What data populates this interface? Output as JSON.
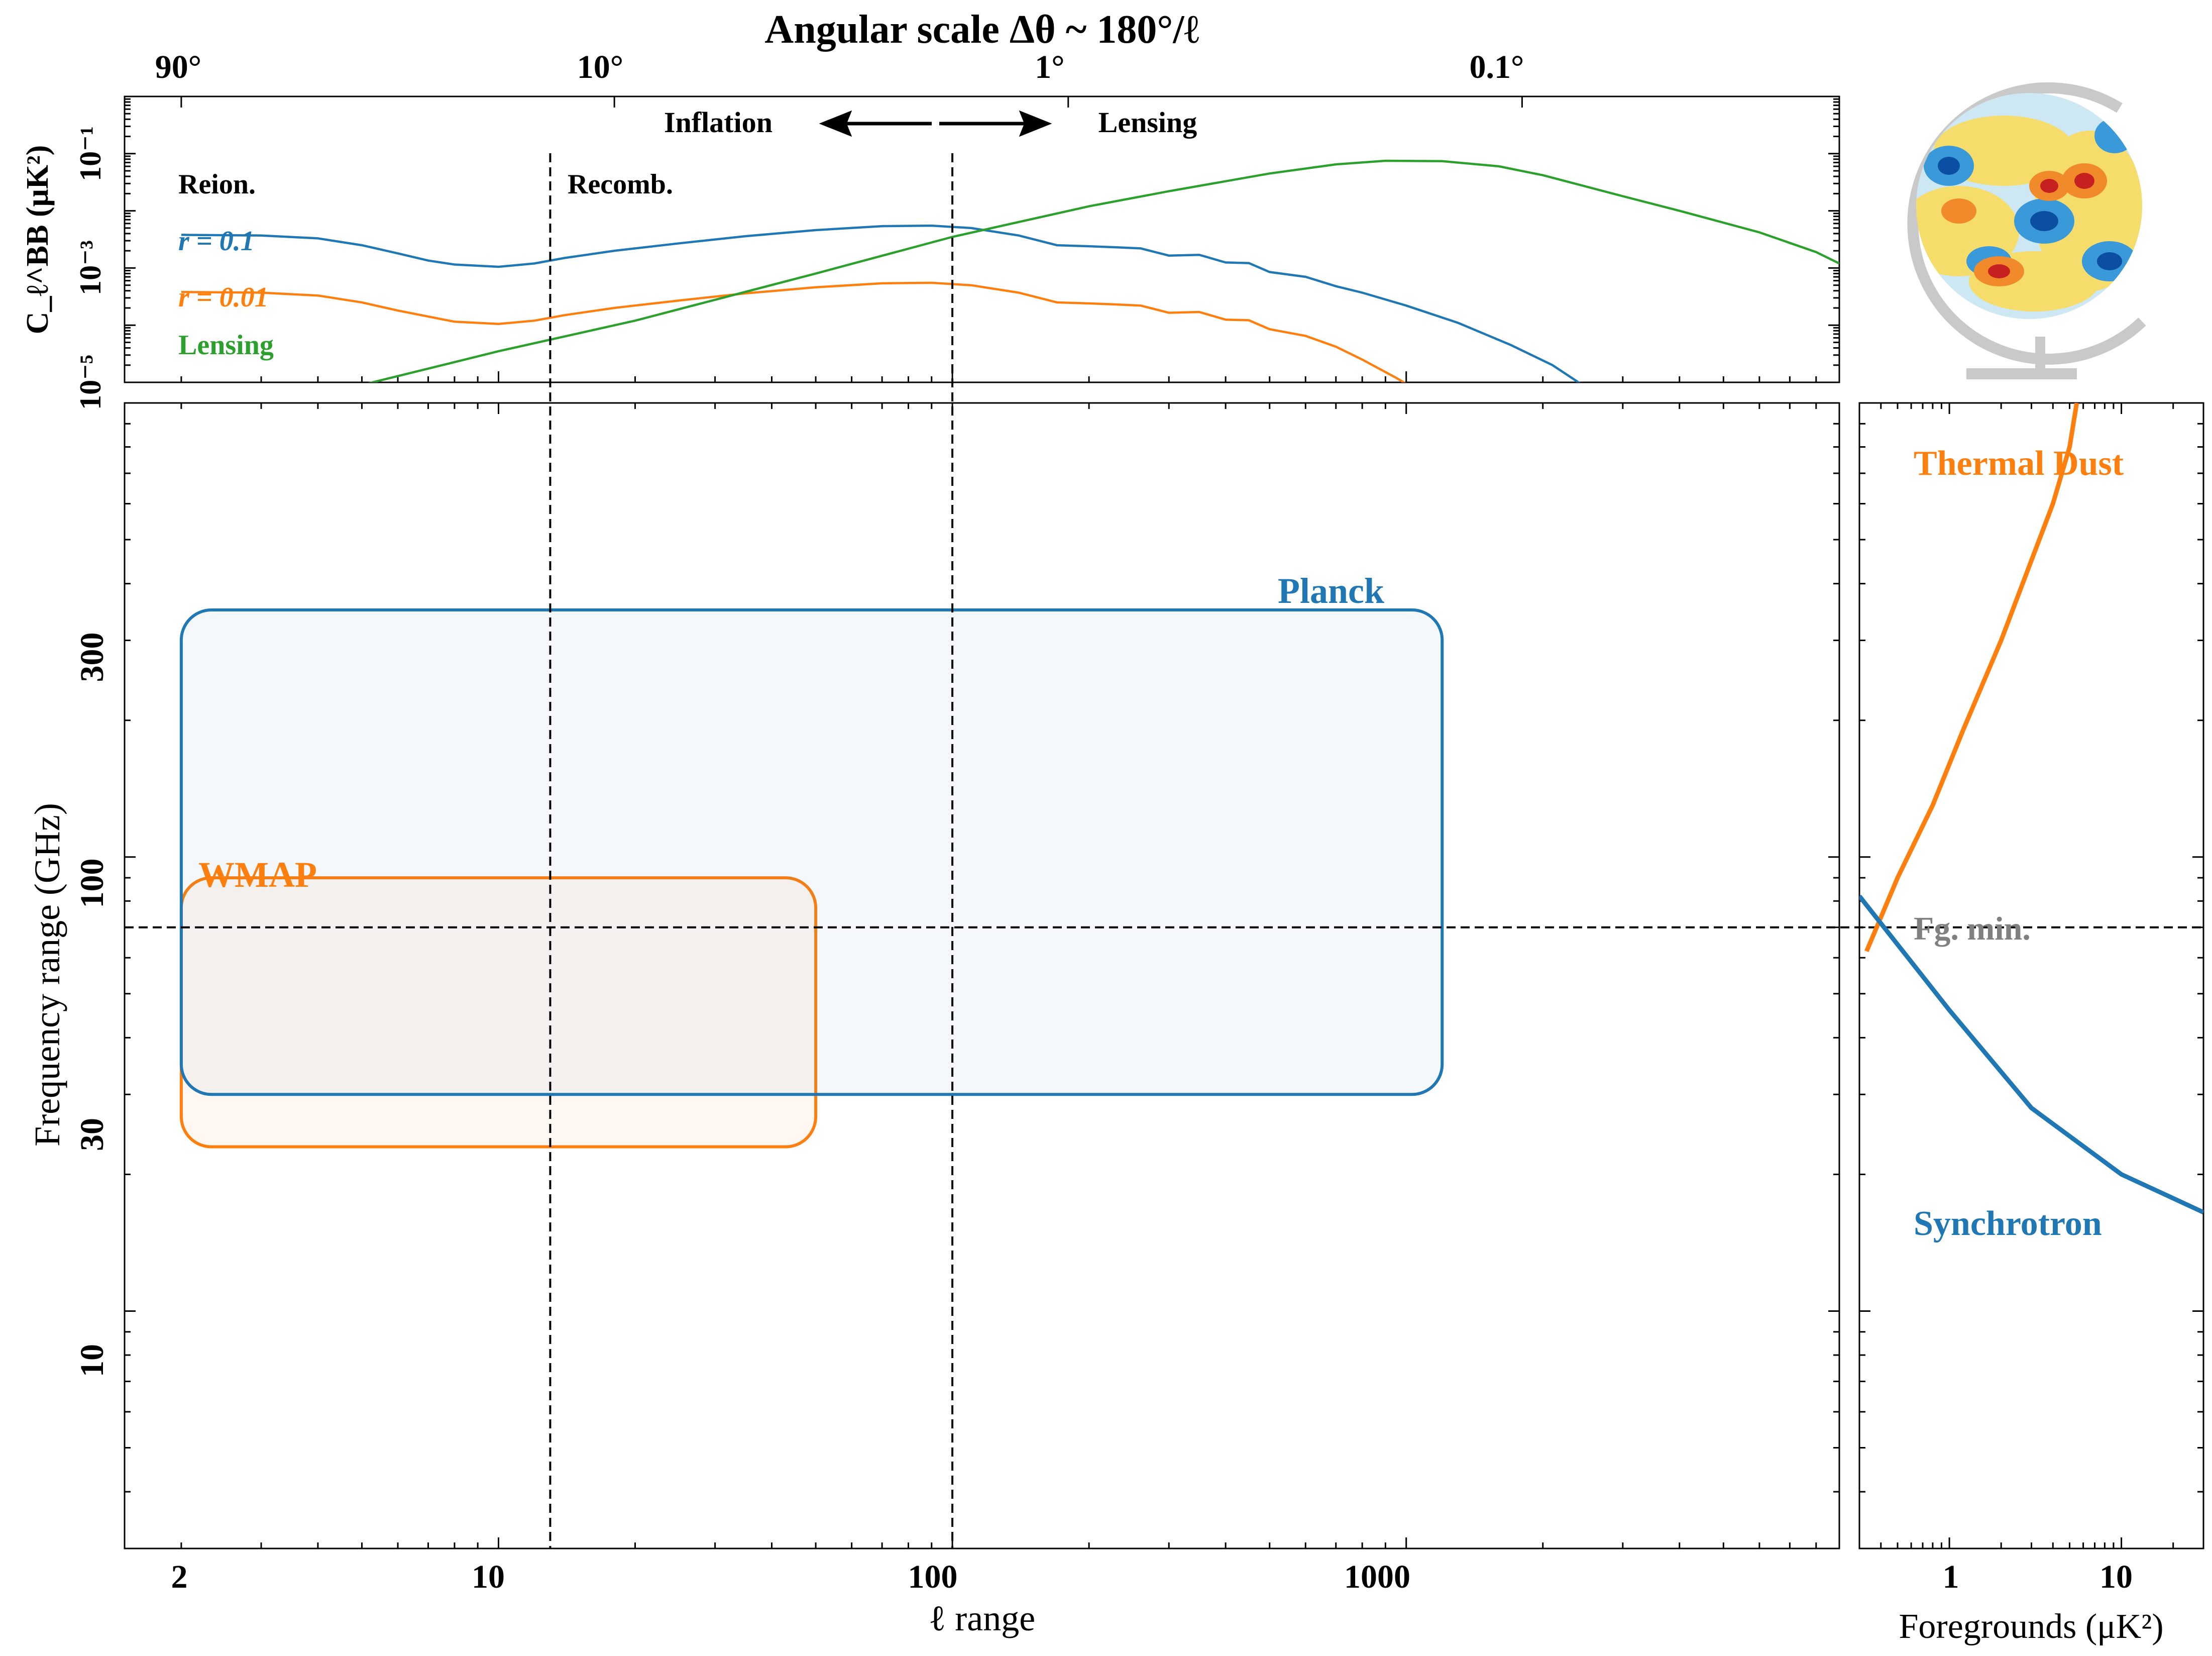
{
  "colors": {
    "blue": "#1f77b4",
    "orange": "#ff7f0e",
    "green": "#2ca02c",
    "gray": "#808080",
    "black": "#000000"
  },
  "top_axis": {
    "title": "Angular scale Δθ ~ 180°/ℓ",
    "ticks": [
      "90°",
      "10°",
      "1°",
      "0.1°"
    ],
    "tick_ell": [
      2,
      18,
      180,
      1800
    ]
  },
  "annotations": {
    "inflation": "Inflation",
    "lensing_arrow": "Lensing",
    "reion": "Reion.",
    "recomb": "Recomb.",
    "fg_min": "Fg. min."
  },
  "chart_data": [
    {
      "type": "line",
      "panel": "top-spectrum",
      "ylabel": "C_ℓ^BB (μK²)",
      "xscale": "log",
      "yscale": "log",
      "xlim": [
        1.5,
        9000
      ],
      "ylim": [
        1e-05,
        1
      ],
      "ytick_labels": [
        "10⁻⁵",
        "10⁻³",
        "10⁻¹"
      ],
      "vlines_ell": [
        13,
        100
      ],
      "series": [
        {
          "name": "r = 0.1",
          "color": "#1f77b4",
          "points": [
            [
              2,
              0.0038
            ],
            [
              3,
              0.0037
            ],
            [
              4,
              0.0033
            ],
            [
              5,
              0.0025
            ],
            [
              6,
              0.0018
            ],
            [
              7,
              0.00135
            ],
            [
              8,
              0.00115
            ],
            [
              10,
              0.00105
            ],
            [
              12,
              0.0012
            ],
            [
              14,
              0.0015
            ],
            [
              18,
              0.002
            ],
            [
              25,
              0.0027
            ],
            [
              35,
              0.0036
            ],
            [
              50,
              0.0046
            ],
            [
              70,
              0.0054
            ],
            [
              90,
              0.0055
            ],
            [
              110,
              0.005
            ],
            [
              140,
              0.0037
            ],
            [
              170,
              0.0025
            ],
            [
              200,
              0.0024
            ],
            [
              230,
              0.0023
            ],
            [
              260,
              0.0022
            ],
            [
              300,
              0.00165
            ],
            [
              350,
              0.0017
            ],
            [
              400,
              0.00125
            ],
            [
              450,
              0.00122
            ],
            [
              500,
              0.00085
            ],
            [
              600,
              0.0007
            ],
            [
              700,
              0.00048
            ],
            [
              800,
              0.00037
            ],
            [
              1000,
              0.00022
            ],
            [
              1300,
              0.00011
            ],
            [
              1700,
              4.5e-05
            ],
            [
              2100,
              2e-05
            ],
            [
              2500,
              8e-06
            ]
          ]
        },
        {
          "name": "r = 0.01",
          "color": "#ff7f0e",
          "points": [
            [
              2,
              0.00038
            ],
            [
              3,
              0.00037
            ],
            [
              4,
              0.00033
            ],
            [
              5,
              0.00025
            ],
            [
              6,
              0.00018
            ],
            [
              8,
              0.000115
            ],
            [
              10,
              0.000105
            ],
            [
              12,
              0.00012
            ],
            [
              14,
              0.00015
            ],
            [
              18,
              0.0002
            ],
            [
              25,
              0.00027
            ],
            [
              35,
              0.00036
            ],
            [
              50,
              0.00046
            ],
            [
              70,
              0.00054
            ],
            [
              90,
              0.00055
            ],
            [
              110,
              0.0005
            ],
            [
              140,
              0.00037
            ],
            [
              170,
              0.00025
            ],
            [
              200,
              0.00024
            ],
            [
              230,
              0.00023
            ],
            [
              260,
              0.00022
            ],
            [
              300,
              0.000165
            ],
            [
              350,
              0.00017
            ],
            [
              400,
              0.000125
            ],
            [
              450,
              0.000122
            ],
            [
              500,
              8.5e-05
            ],
            [
              600,
              6.5e-05
            ],
            [
              700,
              4.2e-05
            ],
            [
              800,
              2.5e-05
            ],
            [
              950,
              1.2e-05
            ],
            [
              1100,
              6e-06
            ]
          ]
        },
        {
          "name": "Lensing",
          "color": "#2ca02c",
          "points": [
            [
              5,
              9e-06
            ],
            [
              10,
              3.5e-05
            ],
            [
              20,
              0.00012
            ],
            [
              50,
              0.0008
            ],
            [
              100,
              0.0035
            ],
            [
              200,
              0.012
            ],
            [
              300,
              0.022
            ],
            [
              500,
              0.045
            ],
            [
              700,
              0.065
            ],
            [
              900,
              0.075
            ],
            [
              1200,
              0.074
            ],
            [
              1600,
              0.06
            ],
            [
              2000,
              0.042
            ],
            [
              3000,
              0.018
            ],
            [
              4000,
              0.01
            ],
            [
              6000,
              0.0042
            ],
            [
              8000,
              0.0019
            ],
            [
              9000,
              0.0012
            ]
          ]
        }
      ]
    },
    {
      "type": "area",
      "panel": "main",
      "xlabel": "ℓ range",
      "ylabel": "Frequency range (GHz)",
      "xscale": "log",
      "yscale": "log",
      "xlim": [
        1.5,
        9000
      ],
      "ylim": [
        3,
        1000
      ],
      "xtick_labels": [
        "2",
        "10",
        "100",
        "1000"
      ],
      "xticks": [
        2,
        10,
        100,
        1000
      ],
      "ytick_labels": [
        "10",
        "30",
        "100",
        "300"
      ],
      "yticks": [
        10,
        30,
        100,
        300
      ],
      "vlines_ell": [
        13,
        100
      ],
      "hline_ghz": 70,
      "series": [
        {
          "name": "Planck",
          "color": "#1f77b4",
          "ell_range": [
            2,
            1200
          ],
          "freq_range_ghz": [
            30,
            350
          ]
        },
        {
          "name": "WMAP",
          "color": "#ff7f0e",
          "ell_range": [
            2,
            50
          ],
          "freq_range_ghz": [
            23,
            90
          ]
        }
      ]
    },
    {
      "type": "line",
      "panel": "foregrounds",
      "xlabel": "Foregrounds (μK²)",
      "xscale": "log",
      "yscale": "log",
      "xlim": [
        0.3,
        30
      ],
      "ylim": [
        3,
        1000
      ],
      "xtick_labels": [
        "1",
        "10"
      ],
      "xticks": [
        1,
        10
      ],
      "series": [
        {
          "name": "Thermal Dust",
          "color": "#ff7f0e",
          "points": [
            [
              0.33,
              62
            ],
            [
              0.5,
              90
            ],
            [
              0.8,
              130
            ],
            [
              1.2,
              190
            ],
            [
              2,
              300
            ],
            [
              3,
              450
            ],
            [
              4,
              600
            ],
            [
              5,
              800
            ],
            [
              5.5,
              1000
            ]
          ]
        },
        {
          "name": "Synchrotron",
          "color": "#1f77b4",
          "points": [
            [
              0.3,
              82
            ],
            [
              1,
              46
            ],
            [
              3,
              28
            ],
            [
              10,
              20
            ],
            [
              30,
              16.5
            ]
          ]
        }
      ]
    }
  ]
}
